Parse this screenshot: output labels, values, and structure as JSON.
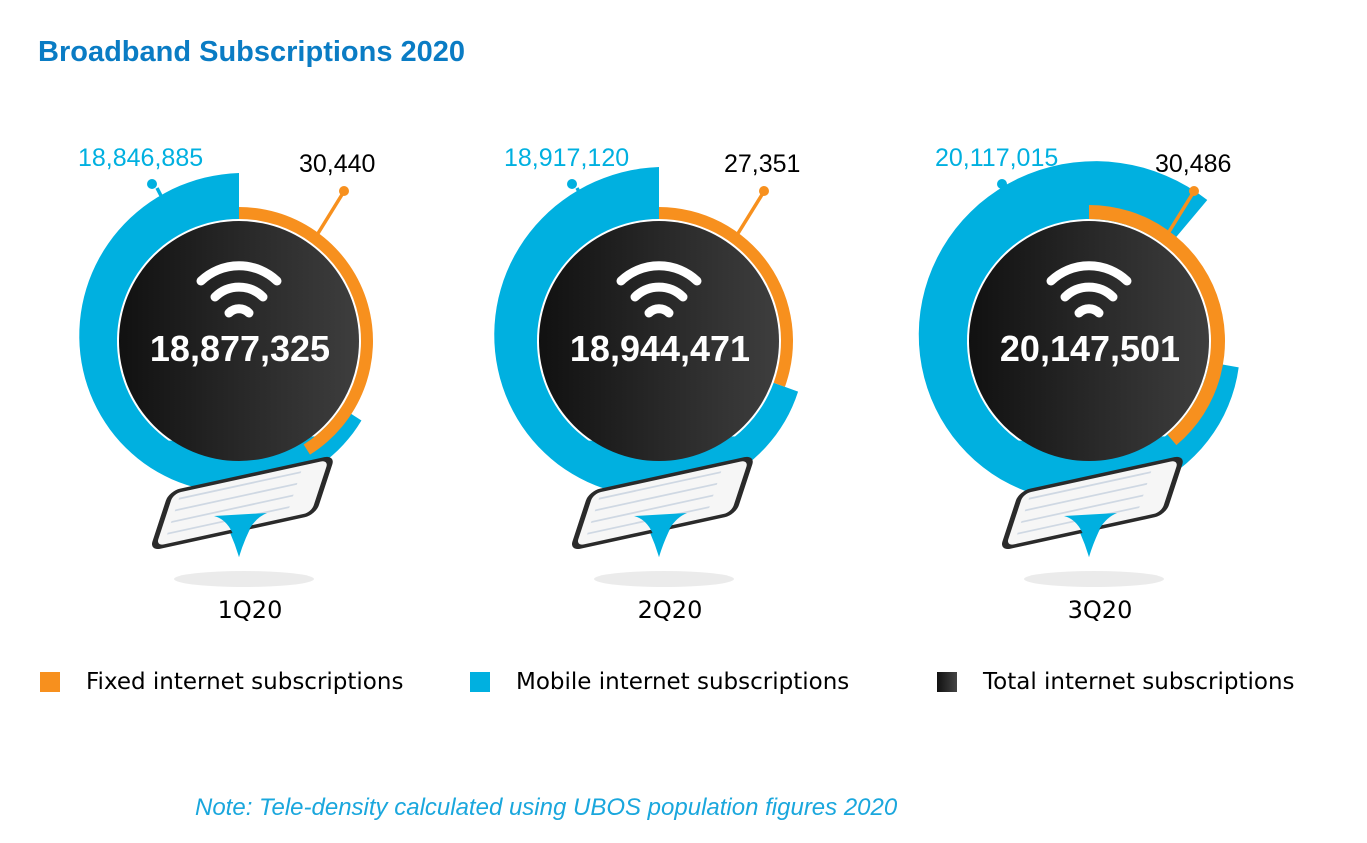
{
  "title": "Broadband Subscriptions 2020",
  "colors": {
    "title": "#0a7cc4",
    "mobile": "#00b0e0",
    "fixed": "#f7901e",
    "total_dark": "#111111",
    "total_light": "#3e3e3e",
    "note": "#1aa7dd"
  },
  "panels": [
    {
      "quarter": "1Q20",
      "mobile": "18,846,885",
      "fixed": "30,440",
      "total": "18,877,325"
    },
    {
      "quarter": "2Q20",
      "mobile": "18,917,120",
      "fixed": "27,351",
      "total": "18,944,471"
    },
    {
      "quarter": "3Q20",
      "mobile": "20,117,015",
      "fixed": "30,486",
      "total": "20,147,501"
    }
  ],
  "legend": [
    {
      "label": "Fixed internet subscriptions",
      "swatch": "fixed"
    },
    {
      "label": "Mobile internet subscriptions",
      "swatch": "mobile"
    },
    {
      "label": "Total internet subscriptions",
      "swatch": "total"
    }
  ],
  "note": "Note: Tele-density calculated using UBOS population figures 2020",
  "icons": {
    "center": "wifi-icon",
    "base": "smartphone-icon"
  },
  "chart_data": {
    "type": "radial-infographic",
    "title": "Broadband Subscriptions 2020",
    "categories": [
      "1Q20",
      "2Q20",
      "3Q20"
    ],
    "series": [
      {
        "name": "Fixed internet subscriptions",
        "values": [
          30440,
          27351,
          30486
        ]
      },
      {
        "name": "Mobile internet subscriptions",
        "values": [
          18846885,
          18917120,
          20117015
        ]
      },
      {
        "name": "Total internet subscriptions",
        "values": [
          18877325,
          18944471,
          20147501
        ]
      }
    ],
    "legend_position": "bottom",
    "annotation": "Note: Tele-density calculated using UBOS population figures 2020"
  }
}
